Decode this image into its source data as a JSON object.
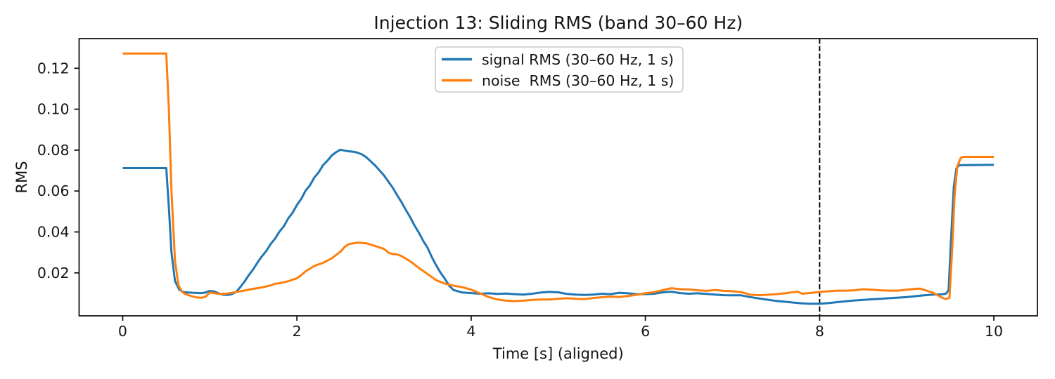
{
  "figure": {
    "kind": "matplotlib-style line chart screenshot"
  },
  "chart_data": {
    "type": "line",
    "title": "Injection 13: Sliding RMS (band 30–60 Hz)",
    "xlabel": "Time [s] (aligned)",
    "ylabel": "RMS",
    "xlim": [
      -0.5,
      10.5
    ],
    "ylim": [
      -0.001,
      0.1345
    ],
    "grid": false,
    "x_ticks": {
      "values": [
        0,
        2,
        4,
        6,
        8,
        10
      ],
      "labels": [
        "0",
        "2",
        "4",
        "6",
        "8",
        "10"
      ]
    },
    "y_ticks": {
      "values": [
        0.02,
        0.04,
        0.06,
        0.08,
        0.1,
        0.12
      ],
      "labels": [
        "0.02",
        "0.04",
        "0.06",
        "0.08",
        "0.10",
        "0.12"
      ]
    },
    "legend": {
      "position": "upper center",
      "entries": [
        {
          "label": "signal RMS (30–60 Hz, 1 s)",
          "color": "#1f77b4"
        },
        {
          "label": "noise  RMS (30–60 Hz, 1 s)",
          "color": "#ff7f0e"
        }
      ]
    },
    "annotations": [
      {
        "type": "vline",
        "x": 8,
        "style": "dashed",
        "color": "#000000"
      }
    ],
    "colors": {
      "signal": "#1f77b4",
      "noise": "#ff7f0e",
      "axis": "#141414"
    },
    "series": [
      {
        "name": "signal RMS (30–60 Hz, 1 s)",
        "color": "#1f77b4",
        "points": [
          [
            0.0,
            0.0712
          ],
          [
            0.5,
            0.0712
          ],
          [
            0.53,
            0.052
          ],
          [
            0.56,
            0.03
          ],
          [
            0.6,
            0.016
          ],
          [
            0.65,
            0.0118
          ],
          [
            0.7,
            0.0106
          ],
          [
            0.8,
            0.0103
          ],
          [
            0.9,
            0.0101
          ],
          [
            0.95,
            0.0104
          ],
          [
            1.0,
            0.0112
          ],
          [
            1.05,
            0.0109
          ],
          [
            1.1,
            0.01
          ],
          [
            1.15,
            0.0094
          ],
          [
            1.2,
            0.0092
          ],
          [
            1.25,
            0.0096
          ],
          [
            1.3,
            0.0106
          ],
          [
            1.35,
            0.013
          ],
          [
            1.4,
            0.0158
          ],
          [
            1.45,
            0.019
          ],
          [
            1.5,
            0.0218
          ],
          [
            1.55,
            0.0252
          ],
          [
            1.6,
            0.0282
          ],
          [
            1.65,
            0.0308
          ],
          [
            1.7,
            0.0342
          ],
          [
            1.75,
            0.0368
          ],
          [
            1.8,
            0.0402
          ],
          [
            1.85,
            0.0428
          ],
          [
            1.9,
            0.0466
          ],
          [
            1.95,
            0.0494
          ],
          [
            2.0,
            0.0532
          ],
          [
            2.05,
            0.0562
          ],
          [
            2.1,
            0.0602
          ],
          [
            2.15,
            0.0628
          ],
          [
            2.2,
            0.0666
          ],
          [
            2.25,
            0.0692
          ],
          [
            2.3,
            0.0726
          ],
          [
            2.35,
            0.0748
          ],
          [
            2.4,
            0.0774
          ],
          [
            2.45,
            0.079
          ],
          [
            2.5,
            0.0802
          ],
          [
            2.55,
            0.0797
          ],
          [
            2.6,
            0.0794
          ],
          [
            2.65,
            0.0792
          ],
          [
            2.7,
            0.0787
          ],
          [
            2.75,
            0.0778
          ],
          [
            2.8,
            0.0764
          ],
          [
            2.85,
            0.0744
          ],
          [
            2.9,
            0.0724
          ],
          [
            2.95,
            0.07
          ],
          [
            3.0,
            0.0676
          ],
          [
            3.05,
            0.0646
          ],
          [
            3.1,
            0.0616
          ],
          [
            3.15,
            0.058
          ],
          [
            3.2,
            0.0546
          ],
          [
            3.25,
            0.0508
          ],
          [
            3.3,
            0.0472
          ],
          [
            3.35,
            0.0431
          ],
          [
            3.4,
            0.0396
          ],
          [
            3.45,
            0.0356
          ],
          [
            3.5,
            0.0322
          ],
          [
            3.55,
            0.0276
          ],
          [
            3.6,
            0.0236
          ],
          [
            3.65,
            0.02
          ],
          [
            3.7,
            0.017
          ],
          [
            3.75,
            0.0136
          ],
          [
            3.8,
            0.0116
          ],
          [
            3.9,
            0.0104
          ],
          [
            4.0,
            0.0101
          ],
          [
            4.1,
            0.0098
          ],
          [
            4.2,
            0.01
          ],
          [
            4.3,
            0.0097
          ],
          [
            4.4,
            0.0099
          ],
          [
            4.5,
            0.0096
          ],
          [
            4.6,
            0.0094
          ],
          [
            4.7,
            0.0098
          ],
          [
            4.8,
            0.0104
          ],
          [
            4.9,
            0.0107
          ],
          [
            5.0,
            0.0105
          ],
          [
            5.1,
            0.0097
          ],
          [
            5.2,
            0.0094
          ],
          [
            5.3,
            0.0092
          ],
          [
            5.4,
            0.0094
          ],
          [
            5.5,
            0.0098
          ],
          [
            5.6,
            0.0096
          ],
          [
            5.7,
            0.0103
          ],
          [
            5.8,
            0.01
          ],
          [
            5.9,
            0.0096
          ],
          [
            6.0,
            0.0096
          ],
          [
            6.1,
            0.0098
          ],
          [
            6.2,
            0.0105
          ],
          [
            6.3,
            0.0108
          ],
          [
            6.4,
            0.0101
          ],
          [
            6.5,
            0.0098
          ],
          [
            6.6,
            0.01
          ],
          [
            6.7,
            0.0097
          ],
          [
            6.8,
            0.0094
          ],
          [
            6.9,
            0.0091
          ],
          [
            7.0,
            0.009
          ],
          [
            7.1,
            0.009
          ],
          [
            7.2,
            0.0082
          ],
          [
            7.3,
            0.0075
          ],
          [
            7.4,
            0.0069
          ],
          [
            7.5,
            0.0063
          ],
          [
            7.6,
            0.0059
          ],
          [
            7.7,
            0.0055
          ],
          [
            7.8,
            0.0051
          ],
          [
            7.9,
            0.0049
          ],
          [
            8.0,
            0.0049
          ],
          [
            8.1,
            0.0052
          ],
          [
            8.2,
            0.0057
          ],
          [
            8.3,
            0.0061
          ],
          [
            8.4,
            0.0065
          ],
          [
            8.5,
            0.0068
          ],
          [
            8.6,
            0.0071
          ],
          [
            8.7,
            0.0073
          ],
          [
            8.8,
            0.0076
          ],
          [
            8.9,
            0.0079
          ],
          [
            9.0,
            0.0082
          ],
          [
            9.1,
            0.0086
          ],
          [
            9.2,
            0.009
          ],
          [
            9.3,
            0.0094
          ],
          [
            9.4,
            0.0095
          ],
          [
            9.45,
            0.0098
          ],
          [
            9.48,
            0.0115
          ],
          [
            9.51,
            0.038
          ],
          [
            9.54,
            0.062
          ],
          [
            9.57,
            0.071
          ],
          [
            9.6,
            0.0726
          ],
          [
            10.0,
            0.0728
          ]
        ]
      },
      {
        "name": "noise  RMS (30–60 Hz, 1 s)",
        "color": "#ff7f0e",
        "points": [
          [
            0.0,
            0.1272
          ],
          [
            0.5,
            0.1272
          ],
          [
            0.53,
            0.1
          ],
          [
            0.56,
            0.06
          ],
          [
            0.6,
            0.026
          ],
          [
            0.64,
            0.014
          ],
          [
            0.68,
            0.0108
          ],
          [
            0.72,
            0.0096
          ],
          [
            0.8,
            0.0085
          ],
          [
            0.85,
            0.008
          ],
          [
            0.9,
            0.0078
          ],
          [
            0.95,
            0.0083
          ],
          [
            1.0,
            0.0104
          ],
          [
            1.05,
            0.0101
          ],
          [
            1.1,
            0.0097
          ],
          [
            1.2,
            0.0099
          ],
          [
            1.3,
            0.0106
          ],
          [
            1.4,
            0.0114
          ],
          [
            1.5,
            0.0122
          ],
          [
            1.6,
            0.0129
          ],
          [
            1.7,
            0.0139
          ],
          [
            1.75,
            0.0147
          ],
          [
            1.8,
            0.0149
          ],
          [
            1.9,
            0.0159
          ],
          [
            2.0,
            0.0174
          ],
          [
            2.05,
            0.0189
          ],
          [
            2.1,
            0.0208
          ],
          [
            2.2,
            0.0234
          ],
          [
            2.3,
            0.0249
          ],
          [
            2.4,
            0.0271
          ],
          [
            2.5,
            0.0304
          ],
          [
            2.55,
            0.0328
          ],
          [
            2.6,
            0.0341
          ],
          [
            2.7,
            0.0348
          ],
          [
            2.8,
            0.0344
          ],
          [
            2.9,
            0.0331
          ],
          [
            3.0,
            0.0317
          ],
          [
            3.05,
            0.0299
          ],
          [
            3.1,
            0.0292
          ],
          [
            3.15,
            0.029
          ],
          [
            3.2,
            0.0282
          ],
          [
            3.3,
            0.0257
          ],
          [
            3.4,
            0.0224
          ],
          [
            3.5,
            0.0194
          ],
          [
            3.6,
            0.0164
          ],
          [
            3.7,
            0.0147
          ],
          [
            3.8,
            0.0137
          ],
          [
            3.9,
            0.013
          ],
          [
            4.0,
            0.0118
          ],
          [
            4.1,
            0.01
          ],
          [
            4.2,
            0.0082
          ],
          [
            4.3,
            0.007
          ],
          [
            4.4,
            0.0064
          ],
          [
            4.5,
            0.0062
          ],
          [
            4.6,
            0.0064
          ],
          [
            4.7,
            0.0068
          ],
          [
            4.8,
            0.007
          ],
          [
            4.9,
            0.007
          ],
          [
            5.0,
            0.0073
          ],
          [
            5.1,
            0.0076
          ],
          [
            5.2,
            0.0073
          ],
          [
            5.3,
            0.0072
          ],
          [
            5.4,
            0.0077
          ],
          [
            5.5,
            0.0081
          ],
          [
            5.6,
            0.0084
          ],
          [
            5.7,
            0.0082
          ],
          [
            5.8,
            0.0087
          ],
          [
            5.9,
            0.0093
          ],
          [
            6.0,
            0.01
          ],
          [
            6.1,
            0.0106
          ],
          [
            6.2,
            0.0116
          ],
          [
            6.3,
            0.0125
          ],
          [
            6.4,
            0.012
          ],
          [
            6.5,
            0.0119
          ],
          [
            6.6,
            0.0115
          ],
          [
            6.7,
            0.0112
          ],
          [
            6.8,
            0.0116
          ],
          [
            6.9,
            0.0112
          ],
          [
            7.0,
            0.011
          ],
          [
            7.1,
            0.0106
          ],
          [
            7.2,
            0.0094
          ],
          [
            7.3,
            0.0091
          ],
          [
            7.4,
            0.0093
          ],
          [
            7.5,
            0.0096
          ],
          [
            7.6,
            0.01
          ],
          [
            7.7,
            0.0106
          ],
          [
            7.75,
            0.0108
          ],
          [
            7.8,
            0.0098
          ],
          [
            7.9,
            0.0102
          ],
          [
            8.0,
            0.0107
          ],
          [
            8.1,
            0.011
          ],
          [
            8.2,
            0.0113
          ],
          [
            8.3,
            0.0113
          ],
          [
            8.4,
            0.0115
          ],
          [
            8.5,
            0.012
          ],
          [
            8.6,
            0.0118
          ],
          [
            8.7,
            0.0115
          ],
          [
            8.8,
            0.0113
          ],
          [
            8.9,
            0.0113
          ],
          [
            9.0,
            0.0118
          ],
          [
            9.1,
            0.0122
          ],
          [
            9.15,
            0.0123
          ],
          [
            9.2,
            0.0117
          ],
          [
            9.3,
            0.0103
          ],
          [
            9.35,
            0.0092
          ],
          [
            9.4,
            0.008
          ],
          [
            9.45,
            0.0072
          ],
          [
            9.49,
            0.0078
          ],
          [
            9.52,
            0.03
          ],
          [
            9.55,
            0.058
          ],
          [
            9.58,
            0.072
          ],
          [
            9.62,
            0.0762
          ],
          [
            9.65,
            0.0767
          ],
          [
            10.0,
            0.0767
          ]
        ]
      }
    ]
  }
}
